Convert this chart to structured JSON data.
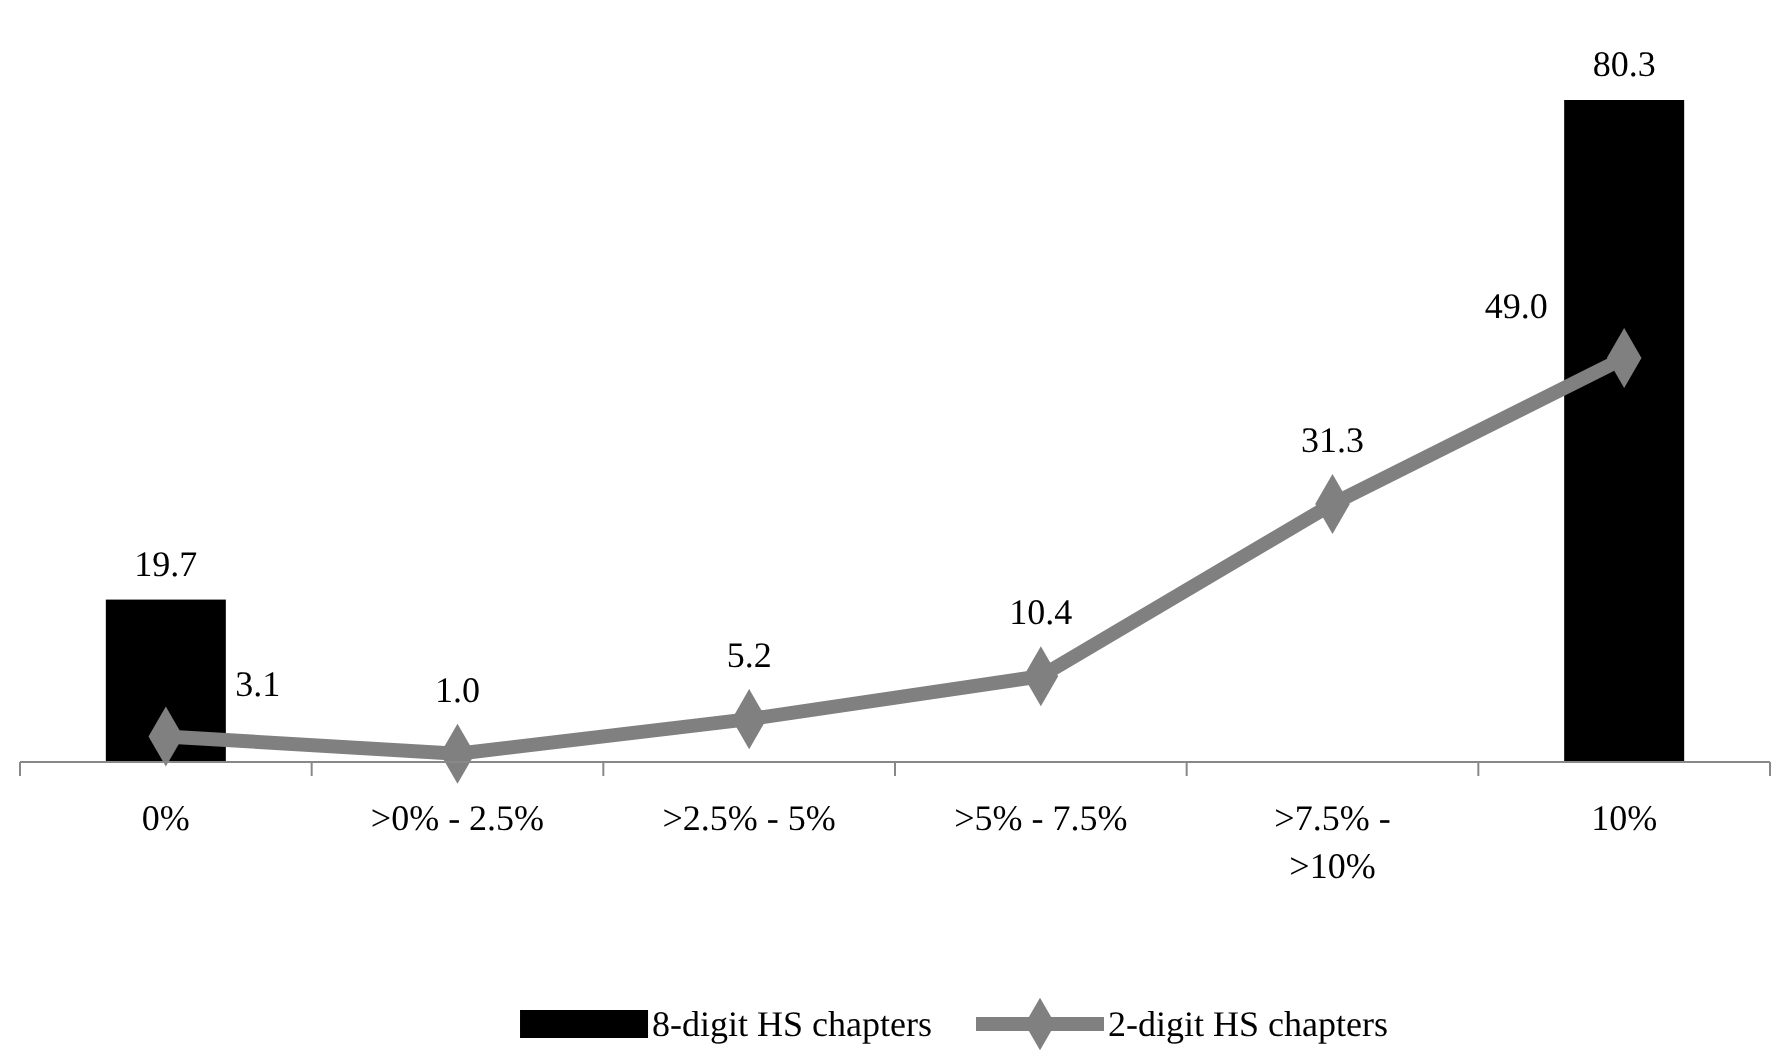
{
  "chart_data": {
    "type": "bar",
    "categories": [
      "0%",
      ">0% - 2.5%",
      ">2.5% - 5%",
      ">5% - 7.5%",
      ">7.5% - >10%",
      "10%"
    ],
    "series": [
      {
        "name": "8-digit HS chapters",
        "color": "#000000",
        "values": [
          19.7,
          null,
          null,
          null,
          null,
          80.3
        ],
        "value_labels": [
          "19.7",
          null,
          null,
          null,
          null,
          "80.3"
        ]
      },
      {
        "name": "2-digit HS chapters",
        "type": "line",
        "color": "#808080",
        "marker": "diamond",
        "values": [
          3.1,
          1.0,
          5.2,
          10.4,
          31.3,
          49.0
        ],
        "value_labels": [
          "3.1",
          "1.0",
          "5.2",
          "10.4",
          "31.3",
          "49.0"
        ]
      }
    ],
    "legend": "bottom"
  }
}
